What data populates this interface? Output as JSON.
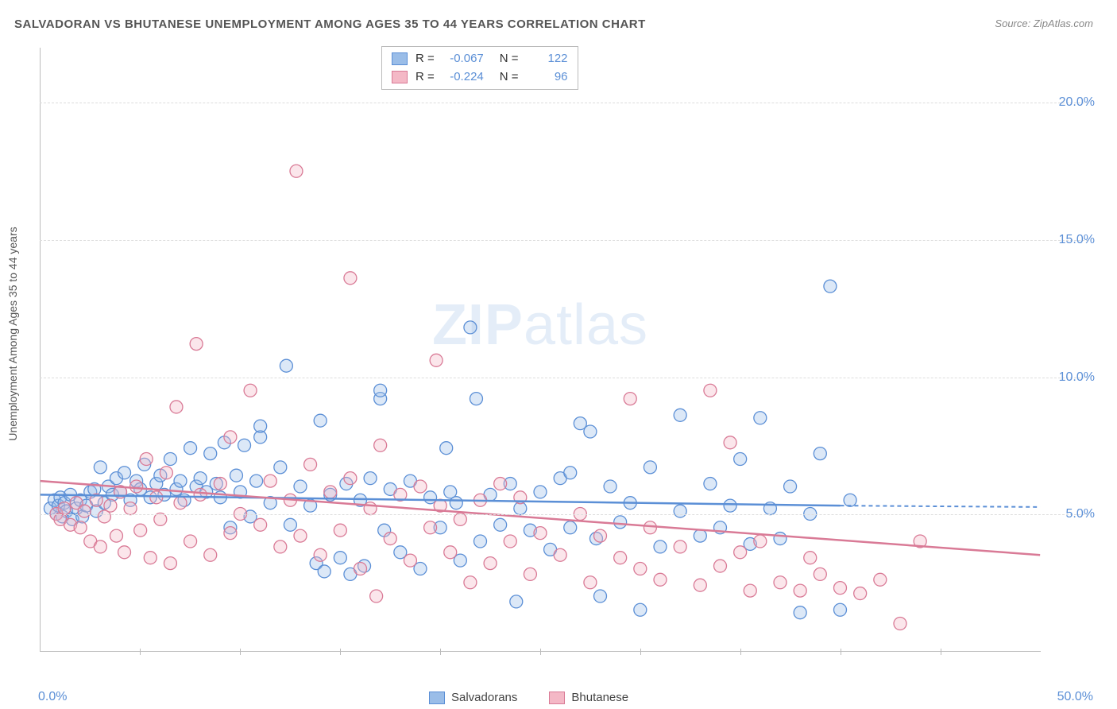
{
  "title": "SALVADORAN VS BHUTANESE UNEMPLOYMENT AMONG AGES 35 TO 44 YEARS CORRELATION CHART",
  "source_label": "Source:",
  "source_name": "ZipAtlas.com",
  "y_axis_label": "Unemployment Among Ages 35 to 44 years",
  "watermark_part1": "ZIP",
  "watermark_part2": "atlas",
  "chart": {
    "type": "scatter",
    "xlim": [
      0,
      50
    ],
    "ylim": [
      0,
      22
    ],
    "x_ticks": [
      0,
      50
    ],
    "x_tick_labels": [
      "0.0%",
      "50.0%"
    ],
    "x_minor_ticks": [
      5,
      10,
      15,
      20,
      25,
      30,
      35,
      40,
      45
    ],
    "y_gridlines": [
      5,
      10,
      15,
      20
    ],
    "y_tick_labels": [
      "5.0%",
      "10.0%",
      "15.0%",
      "20.0%"
    ],
    "background_color": "#ffffff",
    "grid_color": "#dddddd",
    "grid_dash": "4 4",
    "axis_color": "#bbbbbb",
    "tick_label_color": "#5b8fd6",
    "marker_radius": 8,
    "series": [
      {
        "name": "Salvadorans",
        "fill": "#9abde8",
        "stroke": "#5b8fd6",
        "R": "-0.067",
        "N": "122",
        "regression": {
          "x1": 0,
          "y1": 5.7,
          "x2": 40,
          "y2": 5.3,
          "x2_dash": 50,
          "y2_dash": 5.25
        },
        "points": [
          [
            0.5,
            5.2
          ],
          [
            0.7,
            5.5
          ],
          [
            0.8,
            5.0
          ],
          [
            0.9,
            5.3
          ],
          [
            1.0,
            5.6
          ],
          [
            1.1,
            4.9
          ],
          [
            1.2,
            5.4
          ],
          [
            1.3,
            5.1
          ],
          [
            1.5,
            5.7
          ],
          [
            1.6,
            4.8
          ],
          [
            1.8,
            5.2
          ],
          [
            2.0,
            5.5
          ],
          [
            2.1,
            4.9
          ],
          [
            2.3,
            5.3
          ],
          [
            2.5,
            5.8
          ],
          [
            2.7,
            5.9
          ],
          [
            2.8,
            5.1
          ],
          [
            3.0,
            6.7
          ],
          [
            3.2,
            5.4
          ],
          [
            3.4,
            6.0
          ],
          [
            3.6,
            5.7
          ],
          [
            3.8,
            6.3
          ],
          [
            4.0,
            5.8
          ],
          [
            4.2,
            6.5
          ],
          [
            4.5,
            5.5
          ],
          [
            4.8,
            6.2
          ],
          [
            5.0,
            5.9
          ],
          [
            5.2,
            6.8
          ],
          [
            5.5,
            5.6
          ],
          [
            5.8,
            6.1
          ],
          [
            6.0,
            6.4
          ],
          [
            6.2,
            5.7
          ],
          [
            6.5,
            7.0
          ],
          [
            6.8,
            5.9
          ],
          [
            7.0,
            6.2
          ],
          [
            7.2,
            5.5
          ],
          [
            7.5,
            7.4
          ],
          [
            7.8,
            6.0
          ],
          [
            8.0,
            6.3
          ],
          [
            8.3,
            5.8
          ],
          [
            8.5,
            7.2
          ],
          [
            8.8,
            6.1
          ],
          [
            9.0,
            5.6
          ],
          [
            9.2,
            7.6
          ],
          [
            9.5,
            4.5
          ],
          [
            9.8,
            6.4
          ],
          [
            10.0,
            5.8
          ],
          [
            10.2,
            7.5
          ],
          [
            10.5,
            4.9
          ],
          [
            10.8,
            6.2
          ],
          [
            11.0,
            7.8
          ],
          [
            11.0,
            8.2
          ],
          [
            11.5,
            5.4
          ],
          [
            12.0,
            6.7
          ],
          [
            12.3,
            10.4
          ],
          [
            12.5,
            4.6
          ],
          [
            13.0,
            6.0
          ],
          [
            13.5,
            5.3
          ],
          [
            13.8,
            3.2
          ],
          [
            14.0,
            8.4
          ],
          [
            14.2,
            2.9
          ],
          [
            14.5,
            5.7
          ],
          [
            15.0,
            3.4
          ],
          [
            15.3,
            6.1
          ],
          [
            15.5,
            2.8
          ],
          [
            16.0,
            5.5
          ],
          [
            16.2,
            3.1
          ],
          [
            16.5,
            6.3
          ],
          [
            17.0,
            9.2
          ],
          [
            17.0,
            9.5
          ],
          [
            17.2,
            4.4
          ],
          [
            17.5,
            5.9
          ],
          [
            18.0,
            3.6
          ],
          [
            18.5,
            6.2
          ],
          [
            19.0,
            3.0
          ],
          [
            19.5,
            5.6
          ],
          [
            20.0,
            4.5
          ],
          [
            20.3,
            7.4
          ],
          [
            20.5,
            5.8
          ],
          [
            20.8,
            5.4
          ],
          [
            21.0,
            3.3
          ],
          [
            21.5,
            11.8
          ],
          [
            21.8,
            9.2
          ],
          [
            22.0,
            4.0
          ],
          [
            22.5,
            5.7
          ],
          [
            23.0,
            4.6
          ],
          [
            23.5,
            6.1
          ],
          [
            23.8,
            1.8
          ],
          [
            24.0,
            5.2
          ],
          [
            24.5,
            4.4
          ],
          [
            25.0,
            5.8
          ],
          [
            25.5,
            3.7
          ],
          [
            26.0,
            6.3
          ],
          [
            26.5,
            4.5
          ],
          [
            26.5,
            6.5
          ],
          [
            27.0,
            8.3
          ],
          [
            27.5,
            8.0
          ],
          [
            27.8,
            4.1
          ],
          [
            28.0,
            2.0
          ],
          [
            28.5,
            6.0
          ],
          [
            29.0,
            4.7
          ],
          [
            29.5,
            5.4
          ],
          [
            30.0,
            1.5
          ],
          [
            30.5,
            6.7
          ],
          [
            31.0,
            3.8
          ],
          [
            32.0,
            5.1
          ],
          [
            32.0,
            8.6
          ],
          [
            33.0,
            4.2
          ],
          [
            33.5,
            6.1
          ],
          [
            34.0,
            4.5
          ],
          [
            34.5,
            5.3
          ],
          [
            35.0,
            7.0
          ],
          [
            35.5,
            3.9
          ],
          [
            36.0,
            8.5
          ],
          [
            36.5,
            5.2
          ],
          [
            37.0,
            4.1
          ],
          [
            37.5,
            6.0
          ],
          [
            38.0,
            1.4
          ],
          [
            38.5,
            5.0
          ],
          [
            39.0,
            7.2
          ],
          [
            39.5,
            13.3
          ],
          [
            40.0,
            1.5
          ],
          [
            40.5,
            5.5
          ]
        ]
      },
      {
        "name": "Bhutanese",
        "fill": "#f4b8c6",
        "stroke": "#d97a96",
        "R": "-0.224",
        "N": "96",
        "regression": {
          "x1": 0,
          "y1": 6.2,
          "x2": 50,
          "y2": 3.5
        },
        "points": [
          [
            0.8,
            5.0
          ],
          [
            1.0,
            4.8
          ],
          [
            1.2,
            5.2
          ],
          [
            1.5,
            4.6
          ],
          [
            1.8,
            5.4
          ],
          [
            2.0,
            4.5
          ],
          [
            2.2,
            5.1
          ],
          [
            2.5,
            4.0
          ],
          [
            2.8,
            5.5
          ],
          [
            3.0,
            3.8
          ],
          [
            3.2,
            4.9
          ],
          [
            3.5,
            5.3
          ],
          [
            3.8,
            4.2
          ],
          [
            4.0,
            5.8
          ],
          [
            4.2,
            3.6
          ],
          [
            4.5,
            5.2
          ],
          [
            4.8,
            6.0
          ],
          [
            5.0,
            4.4
          ],
          [
            5.3,
            7.0
          ],
          [
            5.5,
            3.4
          ],
          [
            5.8,
            5.6
          ],
          [
            6.0,
            4.8
          ],
          [
            6.3,
            6.5
          ],
          [
            6.5,
            3.2
          ],
          [
            6.8,
            8.9
          ],
          [
            7.0,
            5.4
          ],
          [
            7.5,
            4.0
          ],
          [
            7.8,
            11.2
          ],
          [
            8.0,
            5.7
          ],
          [
            8.5,
            3.5
          ],
          [
            9.0,
            6.1
          ],
          [
            9.5,
            4.3
          ],
          [
            9.5,
            7.8
          ],
          [
            10.0,
            5.0
          ],
          [
            10.5,
            9.5
          ],
          [
            11.0,
            4.6
          ],
          [
            11.5,
            6.2
          ],
          [
            12.0,
            3.8
          ],
          [
            12.5,
            5.5
          ],
          [
            12.8,
            17.5
          ],
          [
            13.0,
            4.2
          ],
          [
            13.5,
            6.8
          ],
          [
            14.0,
            3.5
          ],
          [
            14.5,
            5.8
          ],
          [
            15.0,
            4.4
          ],
          [
            15.5,
            6.3
          ],
          [
            15.5,
            13.6
          ],
          [
            16.0,
            3.0
          ],
          [
            16.5,
            5.2
          ],
          [
            16.8,
            2.0
          ],
          [
            17.0,
            7.5
          ],
          [
            17.5,
            4.1
          ],
          [
            18.0,
            5.7
          ],
          [
            18.5,
            3.3
          ],
          [
            19.0,
            6.0
          ],
          [
            19.5,
            4.5
          ],
          [
            19.8,
            10.6
          ],
          [
            20.0,
            5.3
          ],
          [
            20.5,
            3.6
          ],
          [
            21.0,
            4.8
          ],
          [
            21.5,
            2.5
          ],
          [
            22.0,
            5.5
          ],
          [
            22.5,
            3.2
          ],
          [
            23.0,
            6.1
          ],
          [
            23.5,
            4.0
          ],
          [
            24.0,
            5.6
          ],
          [
            24.5,
            2.8
          ],
          [
            25.0,
            4.3
          ],
          [
            26.0,
            3.5
          ],
          [
            27.0,
            5.0
          ],
          [
            27.5,
            2.5
          ],
          [
            28.0,
            4.2
          ],
          [
            29.0,
            3.4
          ],
          [
            29.5,
            9.2
          ],
          [
            30.0,
            3.0
          ],
          [
            30.5,
            4.5
          ],
          [
            31.0,
            2.6
          ],
          [
            32.0,
            3.8
          ],
          [
            33.0,
            2.4
          ],
          [
            33.5,
            9.5
          ],
          [
            34.0,
            3.1
          ],
          [
            34.5,
            7.6
          ],
          [
            35.0,
            3.6
          ],
          [
            35.5,
            2.2
          ],
          [
            36.0,
            4.0
          ],
          [
            37.0,
            2.5
          ],
          [
            38.0,
            2.2
          ],
          [
            38.5,
            3.4
          ],
          [
            39.0,
            2.8
          ],
          [
            40.0,
            2.3
          ],
          [
            41.0,
            2.1
          ],
          [
            42.0,
            2.6
          ],
          [
            43.0,
            1.0
          ],
          [
            44.0,
            4.0
          ]
        ]
      }
    ]
  },
  "stats_box": {
    "r_label": "R =",
    "n_label": "N ="
  },
  "legend": {
    "series1": "Salvadorans",
    "series2": "Bhutanese"
  }
}
